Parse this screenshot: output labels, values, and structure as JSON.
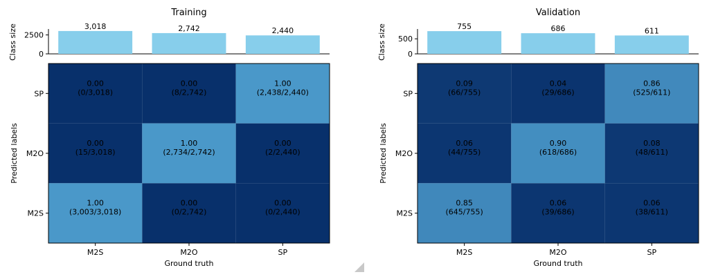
{
  "chart_data": [
    {
      "type": "heatmap",
      "title": "Training",
      "xlabel": "Ground truth",
      "ylabel": "Predicted labels",
      "class_size_label": "Class size",
      "x_categories": [
        "M2S",
        "M2O",
        "SP"
      ],
      "y_categories": [
        "SP",
        "M2O",
        "M2S"
      ],
      "class_sizes": [
        3018,
        2742,
        2440
      ],
      "class_size_labels": [
        "3,018",
        "2,742",
        "2,440"
      ],
      "class_size_ticks": [
        "0",
        "2500"
      ],
      "class_size_tick_values": [
        0,
        2500
      ],
      "class_size_max": 3100,
      "values": [
        [
          0.0,
          0.0,
          1.0
        ],
        [
          0.0,
          1.0,
          0.0
        ],
        [
          1.0,
          0.0,
          0.0
        ]
      ],
      "cell_labels": [
        [
          "0.00\n(0/3,018)",
          "0.00\n(8/2,742)",
          "1.00\n(2,438/2,440)"
        ],
        [
          "0.00\n(15/3,018)",
          "1.00\n(2,734/2,742)",
          "0.00\n(2/2,440)"
        ],
        [
          "1.00\n(3,003/3,018)",
          "0.00\n(0/2,742)",
          "0.00\n(0/2,440)"
        ]
      ]
    },
    {
      "type": "heatmap",
      "title": "Validation",
      "xlabel": "Ground truth",
      "ylabel": "Predicted labels",
      "class_size_label": "Class size",
      "x_categories": [
        "M2S",
        "M2O",
        "SP"
      ],
      "y_categories": [
        "SP",
        "M2O",
        "M2S"
      ],
      "class_sizes": [
        755,
        686,
        611
      ],
      "class_size_labels": [
        "755",
        "686",
        "611"
      ],
      "class_size_ticks": [
        "0",
        "500"
      ],
      "class_size_tick_values": [
        0,
        500
      ],
      "class_size_max": 780,
      "values": [
        [
          0.09,
          0.04,
          0.86
        ],
        [
          0.06,
          0.9,
          0.08
        ],
        [
          0.85,
          0.06,
          0.06
        ]
      ],
      "cell_labels": [
        [
          "0.09\n(66/755)",
          "0.04\n(29/686)",
          "0.86\n(525/611)"
        ],
        [
          "0.06\n(44/755)",
          "0.90\n(618/686)",
          "0.08\n(48/611)"
        ],
        [
          "0.85\n(645/755)",
          "0.06\n(39/686)",
          "0.06\n(38/611)"
        ]
      ]
    }
  ],
  "colors": {
    "bar": "#87ceeb",
    "cell_low": "#08306b",
    "cell_high": "#4a98c9",
    "text": "#000000",
    "axis": "#000000"
  }
}
